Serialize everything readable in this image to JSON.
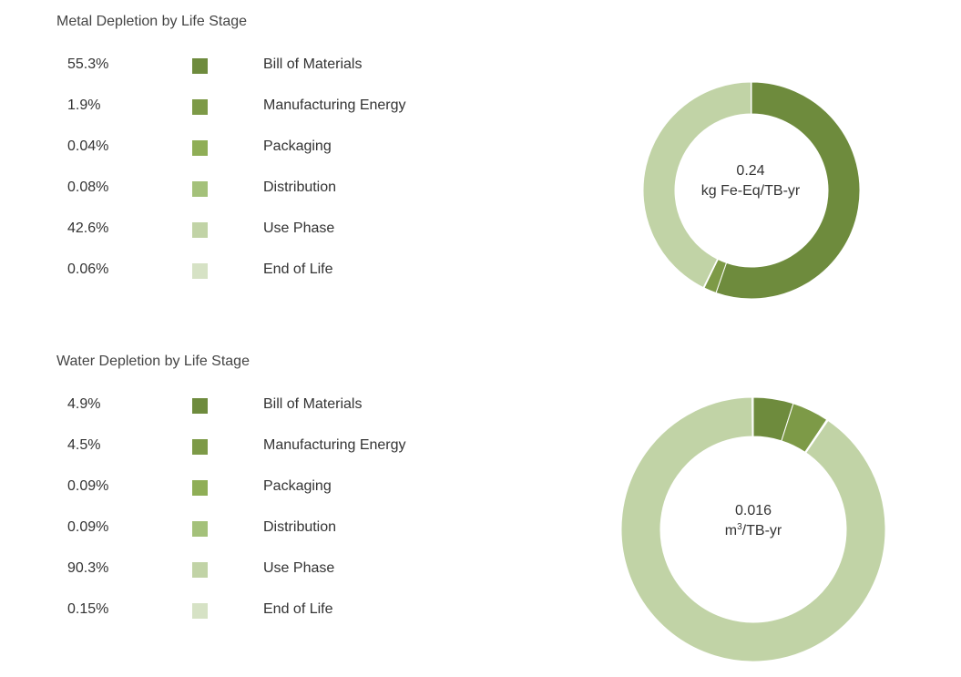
{
  "colors": {
    "bill_of_materials": "#6e8b3d",
    "manufacturing_energy": "#7d9a47",
    "packaging": "#8fae56",
    "distribution": "#a4c17a",
    "use_phase": "#c1d3a6",
    "end_of_life": "#d6e2c5"
  },
  "chart_data": [
    {
      "type": "pie",
      "title": "Metal Depletion by Life Stage",
      "center_value": "0.24",
      "center_unit": "kg Fe-Eq/TB-yr",
      "legend": [
        {
          "pct_label": "55.3%",
          "name": "Bill of Materials",
          "value": 55.3,
          "color": "#6e8b3d"
        },
        {
          "pct_label": "1.9%",
          "name": "Manufacturing Energy",
          "value": 1.9,
          "color": "#7d9a47"
        },
        {
          "pct_label": "0.04%",
          "name": "Packaging",
          "value": 0.04,
          "color": "#8fae56"
        },
        {
          "pct_label": "0.08%",
          "name": "Distribution",
          "value": 0.08,
          "color": "#a4c17a"
        },
        {
          "pct_label": "42.6%",
          "name": "Use Phase",
          "value": 42.6,
          "color": "#c1d3a6"
        },
        {
          "pct_label": "0.06%",
          "name": "End of Life",
          "value": 0.06,
          "color": "#d6e2c5"
        }
      ]
    },
    {
      "type": "pie",
      "title": "Water Depletion by Life Stage",
      "center_value": "0.016",
      "center_unit_base": "m",
      "center_unit_sup": "3",
      "center_unit_rest": "/TB-yr",
      "legend": [
        {
          "pct_label": "4.9%",
          "name": "Bill of Materials",
          "value": 4.9,
          "color": "#6e8b3d"
        },
        {
          "pct_label": "4.5%",
          "name": "Manufacturing Energy",
          "value": 4.5,
          "color": "#7d9a47"
        },
        {
          "pct_label": "0.09%",
          "name": "Packaging",
          "value": 0.09,
          "color": "#8fae56"
        },
        {
          "pct_label": "0.09%",
          "name": "Distribution",
          "value": 0.09,
          "color": "#a4c17a"
        },
        {
          "pct_label": "90.3%",
          "name": "Use Phase",
          "value": 90.3,
          "color": "#c1d3a6"
        },
        {
          "pct_label": "0.15%",
          "name": "End of Life",
          "value": 0.15,
          "color": "#d6e2c5"
        }
      ]
    }
  ]
}
